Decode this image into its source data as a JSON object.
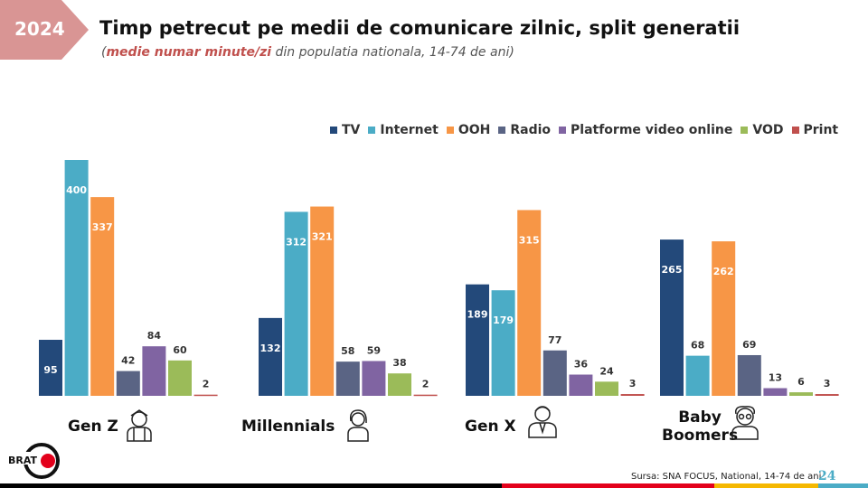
{
  "header": {
    "year": "2024",
    "title": "Timp petrecut pe medii de comunicare zilnic, split generatii",
    "subtitle_bold": "medie numar minute/zi",
    "subtitle_rest": " din populatia nationala, 14-74 de ani)",
    "subtitle_open": "("
  },
  "chart_data": {
    "type": "bar",
    "title": "Timp petrecut pe medii de comunicare zilnic, split generatii",
    "ylabel": "minute/zi",
    "ylim": [
      0,
      400
    ],
    "grid": false,
    "legend_position": "top-right",
    "categories": [
      "Gen Z",
      "Millennials",
      "Gen X",
      "Baby Boomers"
    ],
    "series": [
      {
        "name": "TV",
        "color": "#23497a",
        "values": [
          95,
          132,
          189,
          265
        ]
      },
      {
        "name": "Internet",
        "color": "#4bacc6",
        "values": [
          400,
          312,
          179,
          68
        ]
      },
      {
        "name": "OOH",
        "color": "#f79646",
        "values": [
          337,
          321,
          315,
          262
        ]
      },
      {
        "name": "Radio",
        "color": "#5a6484",
        "values": [
          42,
          58,
          77,
          69
        ]
      },
      {
        "name": "Platforme video online",
        "color": "#8064a2",
        "values": [
          84,
          59,
          36,
          13
        ]
      },
      {
        "name": "VOD",
        "color": "#9bbb59",
        "values": [
          60,
          38,
          24,
          6
        ]
      },
      {
        "name": "Print",
        "color": "#c0504d",
        "values": [
          2,
          2,
          3,
          3
        ]
      }
    ]
  },
  "groups": {
    "gen_z": "Gen Z",
    "millennials": "Millennials",
    "gen_x": "Gen X",
    "boomers_1": "Baby",
    "boomers_2": "Boomers"
  },
  "footer": {
    "logo": "BRAT",
    "source": "Sursa: SNA FOCUS, National, 14-74 de ani",
    "page": "24"
  }
}
